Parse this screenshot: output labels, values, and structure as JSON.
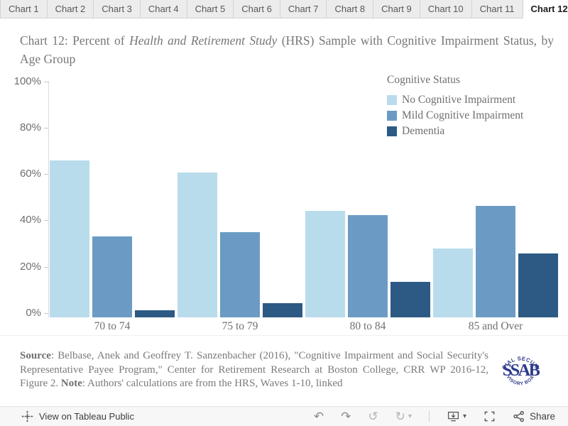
{
  "tabs": {
    "items": [
      "Chart 1",
      "Chart 2",
      "Chart 3",
      "Chart 4",
      "Chart 5",
      "Chart 6",
      "Chart 7",
      "Chart 8",
      "Chart 9",
      "Chart 10",
      "Chart 11",
      "Chart 12"
    ],
    "active": "Chart 12"
  },
  "title": {
    "prefix": "Chart 12: Percent of ",
    "italic": "Health and Retirement Study",
    "suffix": " (HRS) Sample with Cognitive Impairment Status, by Age Group"
  },
  "chart_data": {
    "type": "bar",
    "title": "Chart 12: Percent of Health and Retirement Study (HRS) Sample with Cognitive Impairment Status, by Age Group",
    "categories": [
      "70 to 74",
      "75 to 79",
      "80 to 84",
      "85 and Over"
    ],
    "series": [
      {
        "name": "No Cognitive Impairment",
        "color": "#b9dcec",
        "values": [
          65,
          60,
          44,
          28
        ]
      },
      {
        "name": "Mild Cognitive Impairment",
        "color": "#6b9bc4",
        "values": [
          33,
          35,
          42,
          46
        ]
      },
      {
        "name": "Dementia",
        "color": "#2c5a84",
        "values": [
          2,
          5,
          14,
          26
        ]
      }
    ],
    "unit": "%",
    "ylim": [
      0,
      100
    ],
    "ytick_values": [
      0,
      20,
      40,
      60,
      80,
      100
    ],
    "ytick_labels": [
      "0%",
      "20%",
      "40%",
      "60%",
      "80%",
      "100%"
    ],
    "legend_title": "Cognitive Status",
    "legend_position": "top-right",
    "grid": false
  },
  "source": {
    "source_label": "Source",
    "source_text": ": Belbase, Anek and Geoffrey T. Sanzenbacher (2016), \"Cognitive Impairment and Social Security's Representative Payee Program,\" Center for Retirement Research at Boston College, CRR WP 2016-12, Figure 2. ",
    "note_label": "Note",
    "note_text": ": Authors' calculations are from the HRS, Waves 1-10, linked"
  },
  "logo": {
    "arc_top": "SOCIAL SECURITY",
    "center": "SSAB",
    "arc_bottom": "ADVISORY BOARD",
    "color": "#2d3a8c"
  },
  "footer": {
    "view_text": "View on Tableau Public",
    "share_label": "Share"
  },
  "icons": {
    "undo": "↶",
    "redo": "↷",
    "replay": "↺",
    "refresh": "↻",
    "caret_down": "▾"
  },
  "colors": {
    "accent_light": "#b9dcec",
    "accent_mid": "#6b9bc4",
    "accent_dark": "#2c5a84",
    "text_gray": "#777777",
    "axis_gray": "#6f6f6f"
  }
}
